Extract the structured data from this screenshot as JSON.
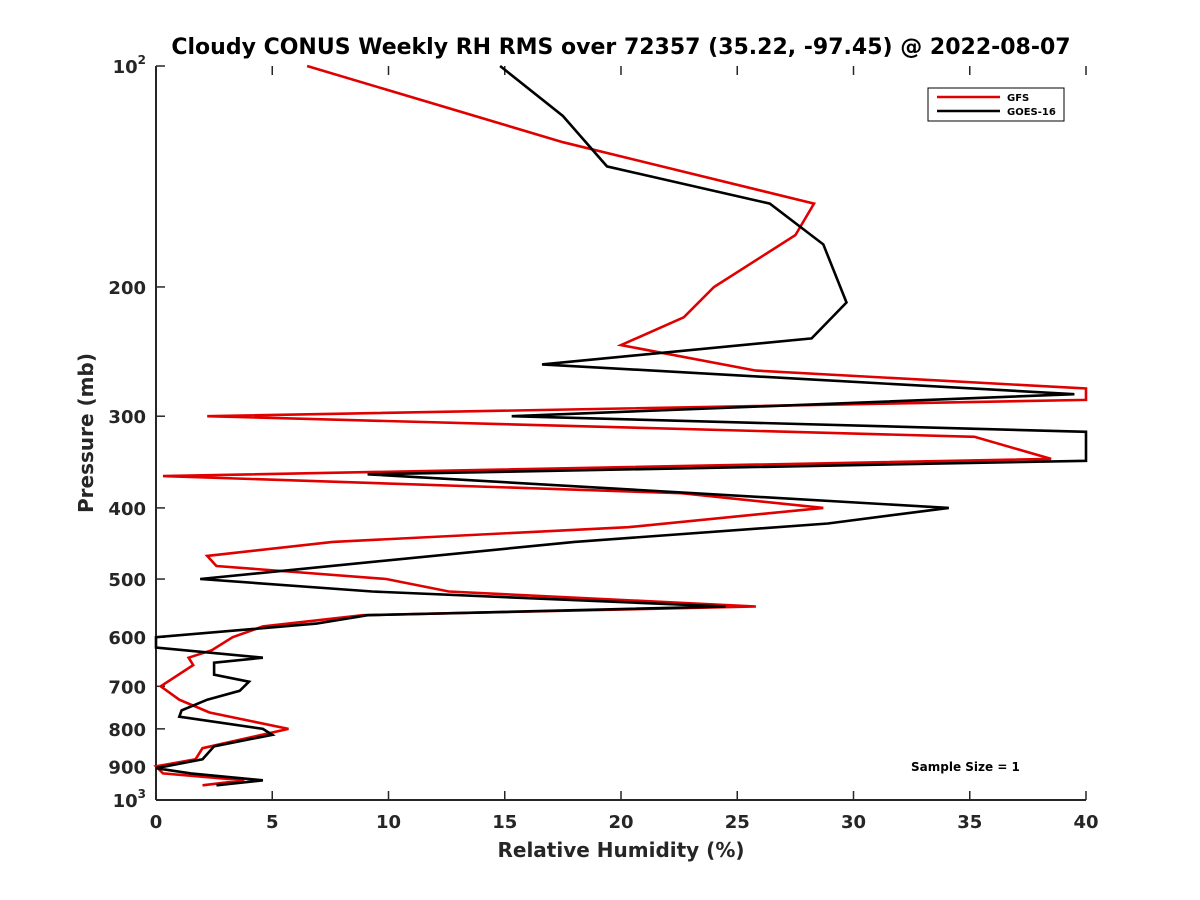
{
  "chart_data": {
    "type": "line",
    "title": "Cloudy CONUS Weekly RH RMS over 72357 (35.22, -97.45) @ 2022-08-07",
    "xlabel": "Relative Humidity (%)",
    "ylabel": "Pressure (mb)",
    "xlim": [
      0,
      40
    ],
    "ylim": [
      100,
      1000
    ],
    "y_scale": "log",
    "y_reversed": true,
    "x_ticks": [
      "0",
      "5",
      "10",
      "15",
      "20",
      "25",
      "30",
      "35",
      "40"
    ],
    "y_ticks": [
      {
        "value": 100,
        "base": "10",
        "exp": "2"
      },
      {
        "value": 200,
        "label": "200"
      },
      {
        "value": 300,
        "label": "300"
      },
      {
        "value": 400,
        "label": "400"
      },
      {
        "value": 500,
        "label": "500"
      },
      {
        "value": 600,
        "label": "600"
      },
      {
        "value": 700,
        "label": "700"
      },
      {
        "value": 800,
        "label": "800"
      },
      {
        "value": 900,
        "label": "900"
      },
      {
        "value": 1000,
        "base": "10",
        "exp": "3"
      }
    ],
    "grid": false,
    "legend_position": "top-right",
    "annotation": "Sample Size = 1",
    "series": [
      {
        "name": "GFS",
        "color": "#e00000",
        "points": [
          [
            6.5,
            100
          ],
          [
            17.5,
            127
          ],
          [
            28.3,
            154
          ],
          [
            27.5,
            170
          ],
          [
            24.0,
            200
          ],
          [
            22.7,
            220
          ],
          [
            20.0,
            240
          ],
          [
            25.8,
            260
          ],
          [
            40.0,
            275
          ],
          [
            40.0,
            285
          ],
          [
            2.2,
            300
          ],
          [
            35.2,
            320
          ],
          [
            38.5,
            343
          ],
          [
            0.3,
            362
          ],
          [
            22.6,
            382
          ],
          [
            28.7,
            400
          ],
          [
            20.3,
            425
          ],
          [
            7.6,
            445
          ],
          [
            2.2,
            465
          ],
          [
            2.6,
            480
          ],
          [
            9.9,
            500
          ],
          [
            12.6,
            520
          ],
          [
            25.8,
            545
          ],
          [
            8.9,
            560
          ],
          [
            4.6,
            580
          ],
          [
            3.3,
            600
          ],
          [
            2.4,
            625
          ],
          [
            1.4,
            640
          ],
          [
            1.6,
            655
          ],
          [
            0.2,
            700
          ],
          [
            1.0,
            730
          ],
          [
            2.3,
            760
          ],
          [
            5.7,
            800
          ],
          [
            4.2,
            820
          ],
          [
            2.0,
            850
          ],
          [
            1.7,
            880
          ],
          [
            0.0,
            900
          ],
          [
            0.3,
            920
          ],
          [
            3.8,
            940
          ],
          [
            2.0,
            955
          ]
        ]
      },
      {
        "name": "GOES-16",
        "color": "#000000",
        "points": [
          [
            14.8,
            100
          ],
          [
            17.5,
            117
          ],
          [
            19.4,
            137
          ],
          [
            26.4,
            154
          ],
          [
            28.7,
            175
          ],
          [
            29.7,
            210
          ],
          [
            28.2,
            235
          ],
          [
            16.6,
            255
          ],
          [
            39.5,
            280
          ],
          [
            15.3,
            300
          ],
          [
            40.0,
            315
          ],
          [
            40.0,
            345
          ],
          [
            9.1,
            360
          ],
          [
            34.1,
            400
          ],
          [
            28.9,
            420
          ],
          [
            18.0,
            445
          ],
          [
            1.9,
            500
          ],
          [
            9.3,
            520
          ],
          [
            24.5,
            545
          ],
          [
            9.1,
            560
          ],
          [
            6.9,
            575
          ],
          [
            0.0,
            600
          ],
          [
            0.0,
            620
          ],
          [
            4.6,
            640
          ],
          [
            2.5,
            650
          ],
          [
            2.5,
            675
          ],
          [
            4.0,
            690
          ],
          [
            3.6,
            710
          ],
          [
            2.2,
            730
          ],
          [
            1.1,
            755
          ],
          [
            1.0,
            770
          ],
          [
            4.6,
            800
          ],
          [
            5.0,
            815
          ],
          [
            2.5,
            845
          ],
          [
            2.0,
            880
          ],
          [
            0.0,
            905
          ],
          [
            1.5,
            920
          ],
          [
            4.6,
            940
          ],
          [
            2.6,
            955
          ]
        ]
      }
    ]
  }
}
